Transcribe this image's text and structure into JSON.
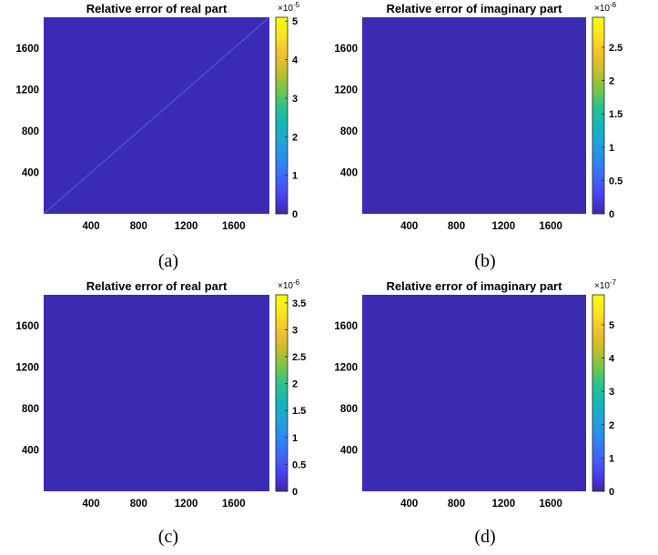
{
  "chart_data": [
    {
      "type": "heatmap",
      "caption": "(a)",
      "title": "Relative error of real part",
      "xticks": [
        400,
        800,
        1200,
        1600
      ],
      "yticks": [
        400,
        800,
        1200,
        1600
      ],
      "xlim": [
        1,
        1900
      ],
      "ylim": [
        1,
        1900
      ],
      "colorbar": {
        "ticks": [
          "0",
          "1",
          "2",
          "3",
          "4",
          "5"
        ],
        "tick_values": [
          0,
          1,
          2,
          3,
          4,
          5
        ],
        "range": [
          0,
          5.1
        ],
        "exponent_base": "×10",
        "exponent": "-5"
      },
      "fill_color": "#3b2bb4",
      "diagonal_feature": true
    },
    {
      "type": "heatmap",
      "caption": "(b)",
      "title": "Relative error of imaginary part",
      "xticks": [
        400,
        800,
        1200,
        1600
      ],
      "yticks": [
        400,
        800,
        1200,
        1600
      ],
      "xlim": [
        1,
        1900
      ],
      "ylim": [
        1,
        1900
      ],
      "colorbar": {
        "ticks": [
          "0",
          "0.5",
          "1",
          "1.5",
          "2",
          "2.5"
        ],
        "tick_values": [
          0,
          0.5,
          1,
          1.5,
          2,
          2.5
        ],
        "range": [
          0,
          2.95
        ],
        "exponent_base": "×10",
        "exponent": "-6"
      },
      "fill_color": "#3b2bb1",
      "diagonal_feature": false
    },
    {
      "type": "heatmap",
      "caption": "(c)",
      "title": "Relative error of real part",
      "xticks": [
        400,
        800,
        1200,
        1600
      ],
      "yticks": [
        400,
        800,
        1200,
        1600
      ],
      "xlim": [
        1,
        1900
      ],
      "ylim": [
        1,
        1900
      ],
      "colorbar": {
        "ticks": [
          "0",
          "0.5",
          "1",
          "1.5",
          "2",
          "2.5",
          "3",
          "3.5"
        ],
        "tick_values": [
          0,
          0.5,
          1,
          1.5,
          2,
          2.5,
          3,
          3.5
        ],
        "range": [
          0,
          3.65
        ],
        "exponent_base": "×10",
        "exponent": "-6"
      },
      "fill_color": "#3b2bb1",
      "diagonal_feature": false
    },
    {
      "type": "heatmap",
      "caption": "(d)",
      "title": "Relative error of imaginary part",
      "xticks": [
        400,
        800,
        1200,
        1600
      ],
      "yticks": [
        400,
        800,
        1200,
        1600
      ],
      "xlim": [
        1,
        1900
      ],
      "ylim": [
        1,
        1900
      ],
      "colorbar": {
        "ticks": [
          "0",
          "1",
          "2",
          "3",
          "4",
          "5"
        ],
        "tick_values": [
          0,
          1,
          2,
          3,
          4,
          5
        ],
        "range": [
          0,
          5.9
        ],
        "exponent_base": "×10",
        "exponent": "-7"
      },
      "fill_color": "#3b2bb1",
      "diagonal_feature": false
    }
  ],
  "colormap": [
    "#3e26a8",
    "#4840f0",
    "#3f67fe",
    "#2c89f0",
    "#1fa4d7",
    "#11b7b8",
    "#2cc28c",
    "#7cc546",
    "#c7bd2a",
    "#f5c02f",
    "#f8e51f",
    "#f9fb0e"
  ]
}
